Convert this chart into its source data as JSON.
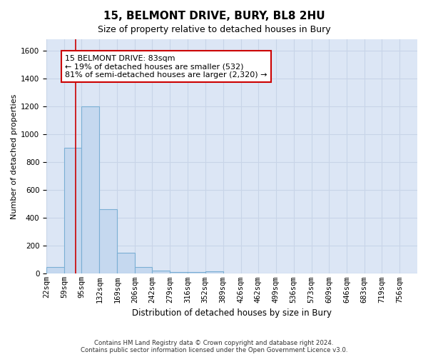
{
  "title": "15, BELMONT DRIVE, BURY, BL8 2HU",
  "subtitle": "Size of property relative to detached houses in Bury",
  "xlabel": "Distribution of detached houses by size in Bury",
  "ylabel": "Number of detached properties",
  "footnote1": "Contains HM Land Registry data © Crown copyright and database right 2024.",
  "footnote2": "Contains public sector information licensed under the Open Government Licence v3.0.",
  "bin_labels": [
    "22sqm",
    "59sqm",
    "95sqm",
    "132sqm",
    "169sqm",
    "206sqm",
    "242sqm",
    "279sqm",
    "316sqm",
    "352sqm",
    "389sqm",
    "426sqm",
    "462sqm",
    "499sqm",
    "536sqm",
    "573sqm",
    "609sqm",
    "646sqm",
    "683sqm",
    "719sqm",
    "756sqm"
  ],
  "bin_edges": [
    22,
    59,
    95,
    132,
    169,
    206,
    242,
    279,
    316,
    352,
    389,
    426,
    462,
    499,
    536,
    573,
    609,
    646,
    683,
    719,
    756,
    793
  ],
  "bar_heights": [
    50,
    900,
    1200,
    460,
    150,
    50,
    25,
    10,
    10,
    15,
    0,
    0,
    0,
    0,
    0,
    0,
    0,
    0,
    0,
    0,
    0
  ],
  "bar_color": "#c5d8ef",
  "bar_edge_color": "#7bafd4",
  "grid_color": "#c8d4e8",
  "background_color": "#dce6f5",
  "ylim": [
    0,
    1680
  ],
  "yticks": [
    0,
    200,
    400,
    600,
    800,
    1000,
    1200,
    1400,
    1600
  ],
  "xlim_min": 22,
  "xlim_max": 793,
  "property_size": 83,
  "property_line_color": "#cc0000",
  "annotation_text": "15 BELMONT DRIVE: 83sqm\n← 19% of detached houses are smaller (532)\n81% of semi-detached houses are larger (2,320) →",
  "annotation_box_color": "#ffffff",
  "annotation_box_edge": "#cc0000",
  "title_fontsize": 11,
  "subtitle_fontsize": 9,
  "ylabel_fontsize": 8,
  "xlabel_fontsize": 8.5,
  "tick_fontsize": 7.5,
  "annot_fontsize": 8
}
